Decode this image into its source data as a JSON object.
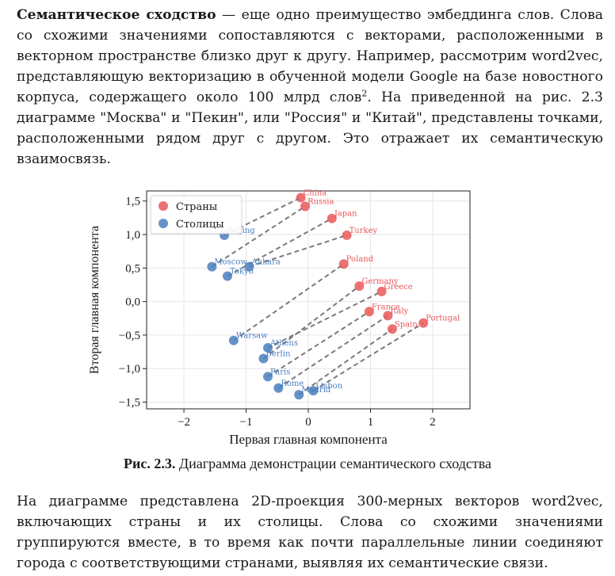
{
  "paragraph1": {
    "term": "Семантическое сходство",
    "text_a": " — еще одно преимущество эмбеддинга слов. Слова со схожими значениями сопоставляются с векторами, расположенными в векторном пространстве близко друг к другу. Например, рассмотрим word2vec, представляющую векторизацию в обученной модели Google на базе новостного корпуса, содержащего около 100 млрд слов",
    "footnote": "2",
    "text_b": ". На приведенной на рис. 2.3 диаграмме \"Москва\" и \"Пекин\", или \"Россия\" и \"Китай\", представлены точками, расположенными рядом друг с другом. Это отражает их семантическую взаимосвязь."
  },
  "caption": {
    "label": "Рис. 2.3.",
    "text": " Диаграмма демонстрации семантического сходства"
  },
  "paragraph2": {
    "text": "На диаграмме представлена 2D-проекция 300-мерных векторов word2vec, включающих страны и их столицы. Слова со схожими значениями группируются вместе, в то время как почти параллельные линии соединяют города с соответствующими странами, выявляя их семантические связи."
  },
  "chart_data": {
    "type": "scatter",
    "xlabel": "Первая главная компонента",
    "ylabel": "Вторая главная компонента",
    "xlim": [
      -2.6,
      2.6
    ],
    "ylim": [
      -1.6,
      1.65
    ],
    "xticks": [
      -2,
      -1,
      0,
      1,
      2
    ],
    "yticks": [
      -1.5,
      -1.0,
      -0.5,
      0.0,
      0.5,
      1.0,
      1.5
    ],
    "xtick_labels": [
      "−2",
      "−1",
      "0",
      "1",
      "2"
    ],
    "ytick_labels": [
      "−1,5",
      "−1,0",
      "−0,5",
      "0,0",
      "0,5",
      "1,0",
      "1,5"
    ],
    "grid": true,
    "legend_position": "top-left",
    "series": [
      {
        "name": "Страны",
        "color": "#e8585a",
        "points": [
          {
            "label": "China",
            "x": -0.12,
            "y": 1.55
          },
          {
            "label": "Russia",
            "x": -0.05,
            "y": 1.42
          },
          {
            "label": "Japan",
            "x": 0.38,
            "y": 1.24
          },
          {
            "label": "Turkey",
            "x": 0.62,
            "y": 0.99
          },
          {
            "label": "Poland",
            "x": 0.57,
            "y": 0.56
          },
          {
            "label": "Germany",
            "x": 0.82,
            "y": 0.23
          },
          {
            "label": "Greece",
            "x": 1.18,
            "y": 0.15
          },
          {
            "label": "France",
            "x": 0.98,
            "y": -0.15
          },
          {
            "label": "Italy",
            "x": 1.28,
            "y": -0.21
          },
          {
            "label": "Spain",
            "x": 1.35,
            "y": -0.41
          },
          {
            "label": "Portugal",
            "x": 1.85,
            "y": -0.32
          }
        ]
      },
      {
        "name": "Столицы",
        "color": "#4a7fbf",
        "points": [
          {
            "label": "Beijing",
            "x": -1.35,
            "y": 0.99
          },
          {
            "label": "Moscow",
            "x": -1.55,
            "y": 0.52
          },
          {
            "label": "Ankara",
            "x": -0.95,
            "y": 0.52
          },
          {
            "label": "Tokyo",
            "x": -1.3,
            "y": 0.38
          },
          {
            "label": "Warsaw",
            "x": -1.2,
            "y": -0.58
          },
          {
            "label": "Athens",
            "x": -0.65,
            "y": -0.69
          },
          {
            "label": "Berlin",
            "x": -0.72,
            "y": -0.85
          },
          {
            "label": "Paris",
            "x": -0.65,
            "y": -1.12
          },
          {
            "label": "Rome",
            "x": -0.48,
            "y": -1.29
          },
          {
            "label": "Lisbon",
            "x": 0.08,
            "y": -1.33
          },
          {
            "label": "Madrid",
            "x": -0.15,
            "y": -1.39
          }
        ]
      }
    ],
    "connections": [
      [
        "Beijing",
        "China"
      ],
      [
        "Moscow",
        "Russia"
      ],
      [
        "Tokyo",
        "Japan"
      ],
      [
        "Ankara",
        "Turkey"
      ],
      [
        "Warsaw",
        "Poland"
      ],
      [
        "Berlin",
        "Germany"
      ],
      [
        "Athens",
        "Greece"
      ],
      [
        "Paris",
        "France"
      ],
      [
        "Rome",
        "Italy"
      ],
      [
        "Madrid",
        "Spain"
      ],
      [
        "Lisbon",
        "Portugal"
      ]
    ]
  }
}
